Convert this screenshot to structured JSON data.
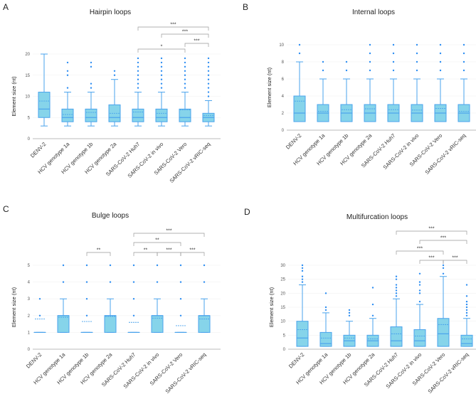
{
  "colors": {
    "box_fill": "#86d4ea",
    "box_stroke": "#4aa3ec",
    "outlier": "#2e8ef2",
    "bracket": "#999999",
    "axis": "#bbbbbb"
  },
  "chart_data": [
    {
      "panel": "A",
      "type": "box",
      "title": "Hairpin loops",
      "ylabel": "Element size (nt)",
      "ylim": [
        0,
        20
      ],
      "yticks": [
        0,
        5,
        10,
        15,
        20
      ],
      "grid": true,
      "categories": [
        "DENV-2",
        "HCV genotype 1a",
        "HCV genotype 1b",
        "HCV genotype 2a",
        "SARS-CoV-2 Huh7",
        "SARS-CoV-2 in vivo",
        "SARS-CoV-2 Vero",
        "SARS-CoV-2 vRIC-seq"
      ],
      "boxes": [
        {
          "min": 3,
          "q1": 5,
          "median": 7,
          "q3": 11,
          "max": 20,
          "mean": 8.9,
          "outliers": []
        },
        {
          "min": 3,
          "q1": 4,
          "median": 5,
          "q3": 7,
          "max": 11,
          "mean": 5.7,
          "outliers": [
            12,
            15,
            16,
            18
          ]
        },
        {
          "min": 3,
          "q1": 4,
          "median": 5,
          "q3": 7,
          "max": 11,
          "mean": 6.2,
          "outliers": [
            12,
            13,
            17,
            18
          ]
        },
        {
          "min": 3,
          "q1": 4,
          "median": 5,
          "q3": 8,
          "max": 14,
          "mean": 6.0,
          "outliers": [
            15,
            16
          ]
        },
        {
          "min": 3,
          "q1": 4,
          "median": 5,
          "q3": 7,
          "max": 11,
          "mean": 6.3,
          "outliers": [
            12,
            13,
            14,
            15,
            16,
            17,
            18,
            19
          ]
        },
        {
          "min": 3,
          "q1": 4,
          "median": 5,
          "q3": 7,
          "max": 11,
          "mean": 6.0,
          "outliers": [
            12,
            13,
            14,
            15,
            16,
            17,
            18,
            19
          ]
        },
        {
          "min": 3,
          "q1": 4,
          "median": 5,
          "q3": 7,
          "max": 11,
          "mean": 6.8,
          "outliers": [
            12,
            13,
            14,
            15,
            16,
            17,
            18,
            19
          ]
        },
        {
          "min": 3,
          "q1": 4,
          "median": 5,
          "q3": 6,
          "max": 9,
          "mean": 5.5,
          "outliers": [
            10,
            11,
            12,
            13,
            14,
            15,
            16,
            17,
            18,
            19
          ]
        }
      ],
      "significance": [
        {
          "from": 4,
          "to": 6,
          "label": "*"
        },
        {
          "from": 6,
          "to": 7,
          "label": "***"
        },
        {
          "from": 5,
          "to": 7,
          "label": "***"
        },
        {
          "from": 4,
          "to": 7,
          "label": "***"
        }
      ]
    },
    {
      "panel": "B",
      "type": "box",
      "title": "Internal loops",
      "ylabel": "Element size (nt)",
      "ylim": [
        0,
        10
      ],
      "yticks": [
        0,
        2,
        4,
        6,
        8,
        10
      ],
      "grid": true,
      "categories": [
        "DENV-2",
        "HCV genotype 1a",
        "HCV genotype 1b",
        "HCV genotype 2a",
        "SARS-CoV-2 Huh7",
        "SARS-CoV-2 in vivo",
        "SARS-CoV-2 Vero",
        "SARS-CoV-2 vRIC-seq"
      ],
      "boxes": [
        {
          "min": 1,
          "q1": 1,
          "median": 2,
          "q3": 4,
          "max": 8,
          "mean": 3.4,
          "outliers": [
            9,
            10
          ]
        },
        {
          "min": 1,
          "q1": 1,
          "median": 2,
          "q3": 3,
          "max": 6,
          "mean": 2.2,
          "outliers": [
            7,
            8
          ]
        },
        {
          "min": 1,
          "q1": 1,
          "median": 2,
          "q3": 3,
          "max": 6,
          "mean": 2.4,
          "outliers": [
            7,
            8
          ]
        },
        {
          "min": 1,
          "q1": 1,
          "median": 2,
          "q3": 3,
          "max": 6,
          "mean": 2.5,
          "outliers": [
            7,
            8,
            9,
            10
          ]
        },
        {
          "min": 1,
          "q1": 1,
          "median": 2,
          "q3": 3,
          "max": 6,
          "mean": 2.4,
          "outliers": [
            7,
            8,
            9,
            10
          ]
        },
        {
          "min": 1,
          "q1": 1,
          "median": 2,
          "q3": 3,
          "max": 6,
          "mean": 2.35,
          "outliers": [
            7,
            8,
            9,
            10
          ]
        },
        {
          "min": 1,
          "q1": 1,
          "median": 2,
          "q3": 3,
          "max": 6,
          "mean": 2.55,
          "outliers": [
            7,
            8,
            9,
            10
          ]
        },
        {
          "min": 1,
          "q1": 1,
          "median": 2,
          "q3": 3,
          "max": 6,
          "mean": 2.2,
          "outliers": [
            7,
            8,
            9,
            10
          ]
        }
      ],
      "significance": []
    },
    {
      "panel": "C",
      "type": "box",
      "title": "Bulge loops",
      "ylabel": "Element size (nt)",
      "ylim": [
        0,
        5
      ],
      "yticks": [
        0,
        1,
        2,
        3,
        4,
        5
      ],
      "grid": true,
      "categories": [
        "DENV-2",
        "HCV genotype 1a",
        "HCV genotype 1b",
        "HCV genotype 2a",
        "SARS-CoV-2 Huh7",
        "SARS-CoV-2 in vivo",
        "SARS-CoV-2 Vero",
        "SARS-CoV-2 vRIC-seq"
      ],
      "boxes": [
        {
          "min": 1,
          "q1": 1,
          "median": 1,
          "q3": 1,
          "max": 1,
          "mean": 1.8,
          "outliers": [
            2,
            3
          ]
        },
        {
          "min": 1,
          "q1": 1,
          "median": 2,
          "q3": 2,
          "max": 3,
          "mean": 1.9,
          "outliers": [
            4,
            5
          ]
        },
        {
          "min": 1,
          "q1": 1,
          "median": 1,
          "q3": 1,
          "max": 1,
          "mean": 1.65,
          "outliers": [
            2,
            3,
            4,
            5
          ]
        },
        {
          "min": 1,
          "q1": 1,
          "median": 2,
          "q3": 2,
          "max": 3,
          "mean": 1.95,
          "outliers": [
            4,
            5
          ]
        },
        {
          "min": 1,
          "q1": 1,
          "median": 1,
          "q3": 1,
          "max": 1,
          "mean": 1.6,
          "outliers": [
            2,
            3,
            4,
            5
          ]
        },
        {
          "min": 1,
          "q1": 1,
          "median": 2,
          "q3": 2,
          "max": 3,
          "mean": 1.85,
          "outliers": [
            4,
            5
          ]
        },
        {
          "min": 1,
          "q1": 1,
          "median": 1,
          "q3": 1,
          "max": 1,
          "mean": 1.4,
          "outliers": [
            2,
            3,
            4,
            5
          ]
        },
        {
          "min": 1,
          "q1": 1,
          "median": 2,
          "q3": 2,
          "max": 3,
          "mean": 1.8,
          "outliers": [
            4,
            5
          ]
        }
      ],
      "significance": [
        {
          "from": 2,
          "to": 3,
          "label": "**"
        },
        {
          "from": 4,
          "to": 5,
          "label": "**"
        },
        {
          "from": 5,
          "to": 6,
          "label": "***"
        },
        {
          "from": 6,
          "to": 7,
          "label": "***"
        },
        {
          "from": 4,
          "to": 6,
          "label": "**"
        },
        {
          "from": 4,
          "to": 7,
          "label": "***"
        }
      ]
    },
    {
      "panel": "D",
      "type": "box",
      "title": "Multifurcation loops",
      "ylabel": "Element size (nt)",
      "ylim": [
        0,
        30
      ],
      "yticks": [
        0,
        5,
        10,
        15,
        20,
        25,
        30
      ],
      "grid": true,
      "categories": [
        "DENV-2",
        "HCV genotype 1a",
        "HCV genotype 1b",
        "HCV genotype 2a",
        "SARS-CoV-2 Huh7",
        "SARS-CoV-2 in vivo",
        "SARS-CoV-2 Vero",
        "SARS-CoV-2 vRIC-seq"
      ],
      "boxes": [
        {
          "min": 1,
          "q1": 1,
          "median": 4,
          "q3": 10,
          "max": 23,
          "mean": 7,
          "outliers": [
            24,
            25,
            26,
            28,
            29,
            30
          ]
        },
        {
          "min": 1,
          "q1": 1,
          "median": 2,
          "q3": 6,
          "max": 13,
          "mean": 4,
          "outliers": [
            14,
            15,
            20
          ]
        },
        {
          "min": 1,
          "q1": 1,
          "median": 3,
          "q3": 5,
          "max": 10,
          "mean": 4,
          "outliers": [
            12,
            13,
            14
          ]
        },
        {
          "min": 1,
          "q1": 1,
          "median": 3,
          "q3": 5,
          "max": 11,
          "mean": 3.7,
          "outliers": [
            12,
            16,
            22
          ]
        },
        {
          "min": 1,
          "q1": 1,
          "median": 3,
          "q3": 8,
          "max": 18,
          "mean": 5.5,
          "outliers": [
            19,
            20,
            21,
            22,
            23,
            25,
            26
          ]
        },
        {
          "min": 1,
          "q1": 1,
          "median": 3,
          "q3": 7,
          "max": 16,
          "mean": 4.7,
          "outliers": [
            17,
            20,
            21,
            23,
            24,
            27
          ]
        },
        {
          "min": 1,
          "q1": 1,
          "median": 5.5,
          "q3": 11,
          "max": 26,
          "mean": 8.8,
          "outliers": [
            27,
            29,
            30
          ]
        },
        {
          "min": 1,
          "q1": 1,
          "median": 2,
          "q3": 5,
          "max": 11,
          "mean": 3.7,
          "outliers": [
            12,
            13,
            14,
            15,
            16,
            17,
            19,
            23
          ]
        }
      ],
      "significance": [
        {
          "from": 5,
          "to": 6,
          "label": "***"
        },
        {
          "from": 6,
          "to": 7,
          "label": "***"
        },
        {
          "from": 4,
          "to": 6,
          "label": "***"
        },
        {
          "from": 5,
          "to": 7,
          "label": "***"
        },
        {
          "from": 4,
          "to": 7,
          "label": "***"
        }
      ]
    }
  ]
}
